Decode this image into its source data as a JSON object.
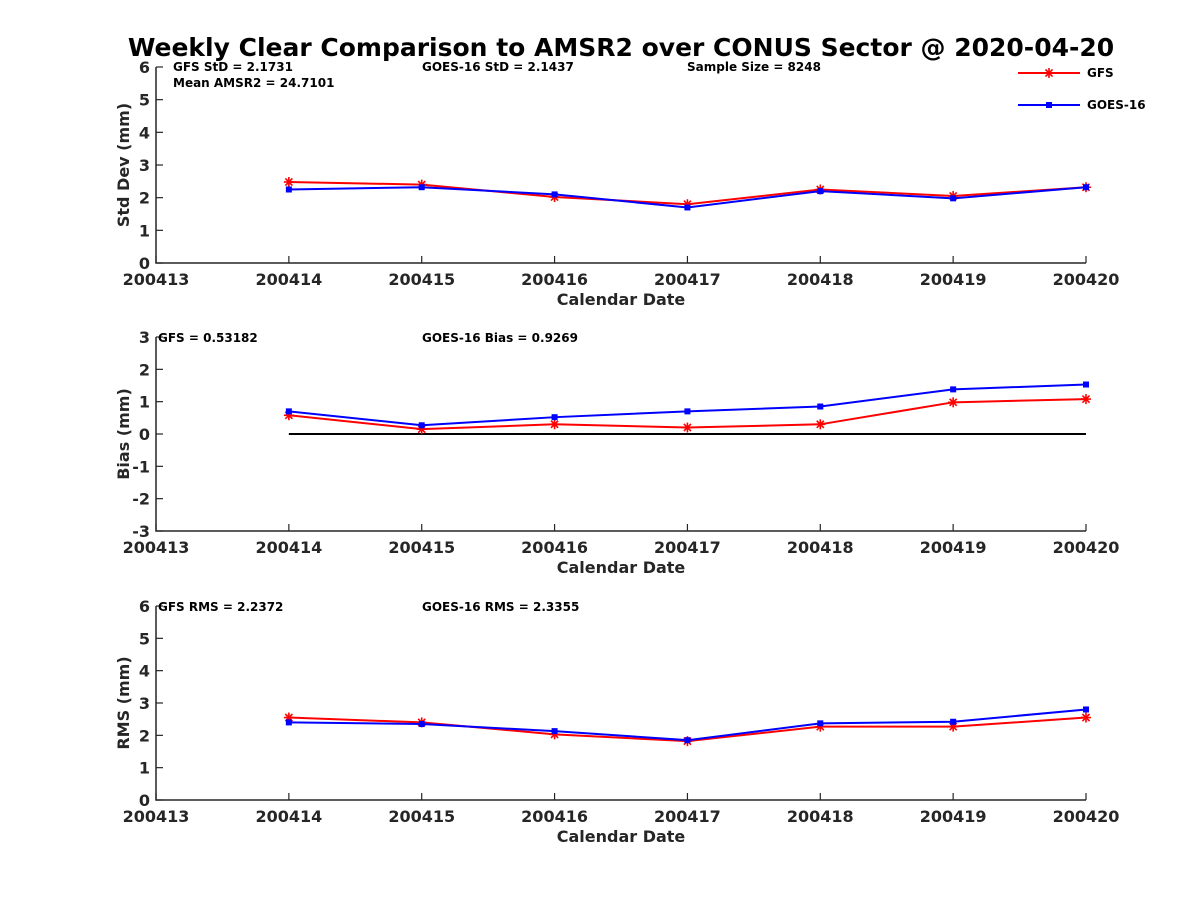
{
  "figure": {
    "title": "Weekly Clear Comparison to AMSR2 over CONUS Sector @ 2020-04-20"
  },
  "legend": {
    "placement": "top-right",
    "items": [
      {
        "label": "GFS",
        "color": "#ff0000",
        "marker": "asterisk"
      },
      {
        "label": "GOES-16",
        "color": "#0000ff",
        "marker": "square"
      }
    ]
  },
  "chart_data": [
    {
      "type": "line",
      "xlabel": "Calendar Date",
      "ylabel": "Std Dev (mm)",
      "x_ticks": [
        "200413",
        "200414",
        "200415",
        "200416",
        "200417",
        "200418",
        "200419",
        "200420"
      ],
      "x": [
        200414,
        200415,
        200416,
        200417,
        200418,
        200419,
        200420
      ],
      "xlim": [
        200413,
        200420
      ],
      "ylim": [
        0,
        6
      ],
      "y_ticks": [
        "0",
        "1",
        "2",
        "3",
        "4",
        "5",
        "6"
      ],
      "grid": false,
      "series": [
        {
          "name": "GFS",
          "color": "#ff0000",
          "marker": "asterisk",
          "values": [
            2.48,
            2.4,
            2.02,
            1.8,
            2.25,
            2.05,
            2.32
          ]
        },
        {
          "name": "GOES-16",
          "color": "#0000ff",
          "marker": "square",
          "values": [
            2.25,
            2.32,
            2.1,
            1.7,
            2.2,
            1.98,
            2.32
          ]
        }
      ],
      "reference_line": null,
      "annotations": [
        "GFS StD = 2.1731",
        "Mean AMSR2 = 24.7101",
        "GOES-16 StD = 2.1437",
        "Sample Size = 8248"
      ]
    },
    {
      "type": "line",
      "xlabel": "Calendar Date",
      "ylabel": "Bias (mm)",
      "x_ticks": [
        "200413",
        "200414",
        "200415",
        "200416",
        "200417",
        "200418",
        "200419",
        "200420"
      ],
      "x": [
        200414,
        200415,
        200416,
        200417,
        200418,
        200419,
        200420
      ],
      "xlim": [
        200413,
        200420
      ],
      "ylim": [
        -3,
        3
      ],
      "y_ticks": [
        "-3",
        "-2",
        "-1",
        "0",
        "1",
        "2",
        "3"
      ],
      "grid": false,
      "series": [
        {
          "name": "GFS",
          "color": "#ff0000",
          "marker": "asterisk",
          "values": [
            0.58,
            0.15,
            0.3,
            0.2,
            0.3,
            0.98,
            1.08
          ]
        },
        {
          "name": "GOES-16",
          "color": "#0000ff",
          "marker": "square",
          "values": [
            0.7,
            0.27,
            0.52,
            0.7,
            0.85,
            1.38,
            1.53
          ]
        }
      ],
      "reference_line": {
        "y": 0,
        "color": "#000000"
      },
      "annotations": [
        "GFS = 0.53182",
        "GOES-16 Bias  = 0.9269"
      ]
    },
    {
      "type": "line",
      "xlabel": "Calendar Date",
      "ylabel": "RMS (mm)",
      "x_ticks": [
        "200413",
        "200414",
        "200415",
        "200416",
        "200417",
        "200418",
        "200419",
        "200420"
      ],
      "x": [
        200414,
        200415,
        200416,
        200417,
        200418,
        200419,
        200420
      ],
      "xlim": [
        200413,
        200420
      ],
      "ylim": [
        0,
        6
      ],
      "y_ticks": [
        "0",
        "1",
        "2",
        "3",
        "4",
        "5",
        "6"
      ],
      "grid": false,
      "series": [
        {
          "name": "GFS",
          "color": "#ff0000",
          "marker": "asterisk",
          "values": [
            2.55,
            2.4,
            2.03,
            1.82,
            2.27,
            2.27,
            2.55
          ]
        },
        {
          "name": "GOES-16",
          "color": "#0000ff",
          "marker": "square",
          "values": [
            2.4,
            2.35,
            2.13,
            1.85,
            2.37,
            2.42,
            2.8
          ]
        }
      ],
      "reference_line": null,
      "annotations": [
        "GFS RMS = 2.2372",
        "GOES-16 RMS = 2.3355"
      ]
    }
  ]
}
